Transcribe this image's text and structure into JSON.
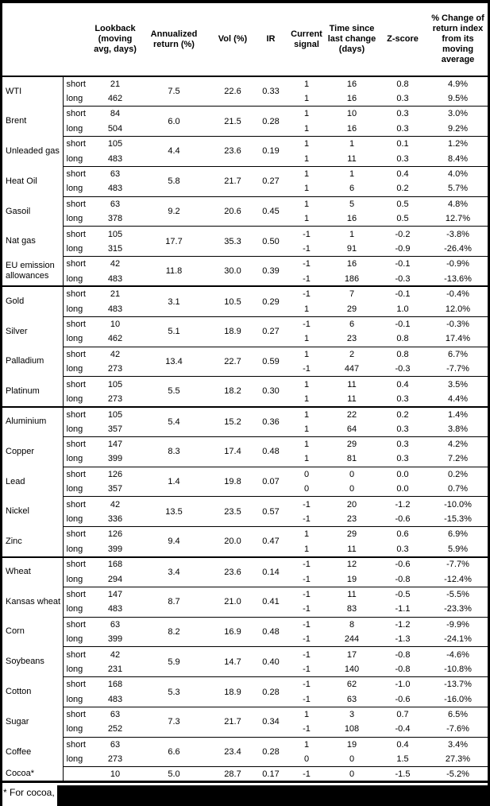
{
  "colors": {
    "text": "#000000",
    "background": "#ffffff",
    "rule": "#000000",
    "redaction": "#000000"
  },
  "header": {
    "columns": [
      "",
      "",
      "Lookback (moving avg, days)",
      "Annualized return (%)",
      "Vol (%)",
      "IR",
      "Current signal",
      "Time since last change (days)",
      "Z-score",
      "% Change of return index from its moving average"
    ]
  },
  "table": {
    "groups": [
      {
        "name": "WTI",
        "section_start": false,
        "ann_return": "7.5",
        "vol": "22.6",
        "ir": "0.33",
        "rows": [
          {
            "horizon": "short",
            "lookback": "21",
            "signal": "1",
            "time_since": "16",
            "zscore": "0.8",
            "pct_change": "4.9%"
          },
          {
            "horizon": "long",
            "lookback": "462",
            "signal": "1",
            "time_since": "16",
            "zscore": "0.3",
            "pct_change": "9.5%"
          }
        ]
      },
      {
        "name": "Brent",
        "section_start": false,
        "ann_return": "6.0",
        "vol": "21.5",
        "ir": "0.28",
        "rows": [
          {
            "horizon": "short",
            "lookback": "84",
            "signal": "1",
            "time_since": "10",
            "zscore": "0.3",
            "pct_change": "3.0%"
          },
          {
            "horizon": "long",
            "lookback": "504",
            "signal": "1",
            "time_since": "16",
            "zscore": "0.3",
            "pct_change": "9.2%"
          }
        ]
      },
      {
        "name": "Unleaded gas",
        "section_start": false,
        "ann_return": "4.4",
        "vol": "23.6",
        "ir": "0.19",
        "rows": [
          {
            "horizon": "short",
            "lookback": "105",
            "signal": "1",
            "time_since": "1",
            "zscore": "0.1",
            "pct_change": "1.2%"
          },
          {
            "horizon": "long",
            "lookback": "483",
            "signal": "1",
            "time_since": "11",
            "zscore": "0.3",
            "pct_change": "8.4%"
          }
        ]
      },
      {
        "name": "Heat Oil",
        "section_start": false,
        "ann_return": "5.8",
        "vol": "21.7",
        "ir": "0.27",
        "rows": [
          {
            "horizon": "short",
            "lookback": "63",
            "signal": "1",
            "time_since": "1",
            "zscore": "0.4",
            "pct_change": "4.0%"
          },
          {
            "horizon": "long",
            "lookback": "483",
            "signal": "1",
            "time_since": "6",
            "zscore": "0.2",
            "pct_change": "5.7%"
          }
        ]
      },
      {
        "name": "Gasoil",
        "section_start": false,
        "ann_return": "9.2",
        "vol": "20.6",
        "ir": "0.45",
        "rows": [
          {
            "horizon": "short",
            "lookback": "63",
            "signal": "1",
            "time_since": "5",
            "zscore": "0.5",
            "pct_change": "4.8%"
          },
          {
            "horizon": "long",
            "lookback": "378",
            "signal": "1",
            "time_since": "16",
            "zscore": "0.5",
            "pct_change": "12.7%"
          }
        ]
      },
      {
        "name": "Nat gas",
        "section_start": false,
        "ann_return": "17.7",
        "vol": "35.3",
        "ir": "0.50",
        "rows": [
          {
            "horizon": "short",
            "lookback": "105",
            "signal": "-1",
            "time_since": "1",
            "zscore": "-0.2",
            "pct_change": "-3.8%"
          },
          {
            "horizon": "long",
            "lookback": "315",
            "signal": "-1",
            "time_since": "91",
            "zscore": "-0.9",
            "pct_change": "-26.4%"
          }
        ]
      },
      {
        "name": "EU emission allowances",
        "section_start": false,
        "ann_return": "11.8",
        "vol": "30.0",
        "ir": "0.39",
        "rows": [
          {
            "horizon": "short",
            "lookback": "42",
            "signal": "-1",
            "time_since": "16",
            "zscore": "-0.1",
            "pct_change": "-0.9%"
          },
          {
            "horizon": "long",
            "lookback": "483",
            "signal": "-1",
            "time_since": "186",
            "zscore": "-0.3",
            "pct_change": "-13.6%"
          }
        ]
      },
      {
        "name": "Gold",
        "section_start": true,
        "ann_return": "3.1",
        "vol": "10.5",
        "ir": "0.29",
        "rows": [
          {
            "horizon": "short",
            "lookback": "21",
            "signal": "-1",
            "time_since": "7",
            "zscore": "-0.1",
            "pct_change": "-0.4%"
          },
          {
            "horizon": "long",
            "lookback": "483",
            "signal": "1",
            "time_since": "29",
            "zscore": "1.0",
            "pct_change": "12.0%"
          }
        ]
      },
      {
        "name": "Silver",
        "section_start": false,
        "ann_return": "5.1",
        "vol": "18.9",
        "ir": "0.27",
        "rows": [
          {
            "horizon": "short",
            "lookback": "10",
            "signal": "-1",
            "time_since": "6",
            "zscore": "-0.1",
            "pct_change": "-0.3%"
          },
          {
            "horizon": "long",
            "lookback": "462",
            "signal": "1",
            "time_since": "23",
            "zscore": "0.8",
            "pct_change": "17.4%"
          }
        ]
      },
      {
        "name": "Palladium",
        "section_start": false,
        "ann_return": "13.4",
        "vol": "22.7",
        "ir": "0.59",
        "rows": [
          {
            "horizon": "short",
            "lookback": "42",
            "signal": "1",
            "time_since": "2",
            "zscore": "0.8",
            "pct_change": "6.7%"
          },
          {
            "horizon": "long",
            "lookback": "273",
            "signal": "-1",
            "time_since": "447",
            "zscore": "-0.3",
            "pct_change": "-7.7%"
          }
        ]
      },
      {
        "name": "Platinum",
        "section_start": false,
        "ann_return": "5.5",
        "vol": "18.2",
        "ir": "0.30",
        "rows": [
          {
            "horizon": "short",
            "lookback": "105",
            "signal": "1",
            "time_since": "11",
            "zscore": "0.4",
            "pct_change": "3.5%"
          },
          {
            "horizon": "long",
            "lookback": "273",
            "signal": "1",
            "time_since": "11",
            "zscore": "0.3",
            "pct_change": "4.4%"
          }
        ]
      },
      {
        "name": "Aluminium",
        "section_start": true,
        "ann_return": "5.4",
        "vol": "15.2",
        "ir": "0.36",
        "rows": [
          {
            "horizon": "short",
            "lookback": "105",
            "signal": "1",
            "time_since": "22",
            "zscore": "0.2",
            "pct_change": "1.4%"
          },
          {
            "horizon": "long",
            "lookback": "357",
            "signal": "1",
            "time_since": "64",
            "zscore": "0.3",
            "pct_change": "3.8%"
          }
        ]
      },
      {
        "name": "Copper",
        "section_start": false,
        "ann_return": "8.3",
        "vol": "17.4",
        "ir": "0.48",
        "rows": [
          {
            "horizon": "short",
            "lookback": "147",
            "signal": "1",
            "time_since": "29",
            "zscore": "0.3",
            "pct_change": "4.2%"
          },
          {
            "horizon": "long",
            "lookback": "399",
            "signal": "1",
            "time_since": "81",
            "zscore": "0.3",
            "pct_change": "7.2%"
          }
        ]
      },
      {
        "name": "Lead",
        "section_start": false,
        "ann_return": "1.4",
        "vol": "19.8",
        "ir": "0.07",
        "rows": [
          {
            "horizon": "short",
            "lookback": "126",
            "signal": "0",
            "time_since": "0",
            "zscore": "0.0",
            "pct_change": "0.2%"
          },
          {
            "horizon": "long",
            "lookback": "357",
            "signal": "0",
            "time_since": "0",
            "zscore": "0.0",
            "pct_change": "0.7%"
          }
        ]
      },
      {
        "name": "Nickel",
        "section_start": false,
        "ann_return": "13.5",
        "vol": "23.5",
        "ir": "0.57",
        "rows": [
          {
            "horizon": "short",
            "lookback": "42",
            "signal": "-1",
            "time_since": "20",
            "zscore": "-1.2",
            "pct_change": "-10.0%"
          },
          {
            "horizon": "long",
            "lookback": "336",
            "signal": "-1",
            "time_since": "23",
            "zscore": "-0.6",
            "pct_change": "-15.3%"
          }
        ]
      },
      {
        "name": "Zinc",
        "section_start": false,
        "ann_return": "9.4",
        "vol": "20.0",
        "ir": "0.47",
        "rows": [
          {
            "horizon": "short",
            "lookback": "126",
            "signal": "1",
            "time_since": "29",
            "zscore": "0.6",
            "pct_change": "6.9%"
          },
          {
            "horizon": "long",
            "lookback": "399",
            "signal": "1",
            "time_since": "11",
            "zscore": "0.3",
            "pct_change": "5.9%"
          }
        ]
      },
      {
        "name": "Wheat",
        "section_start": true,
        "ann_return": "3.4",
        "vol": "23.6",
        "ir": "0.14",
        "rows": [
          {
            "horizon": "short",
            "lookback": "168",
            "signal": "-1",
            "time_since": "12",
            "zscore": "-0.6",
            "pct_change": "-7.7%"
          },
          {
            "horizon": "long",
            "lookback": "294",
            "signal": "-1",
            "time_since": "19",
            "zscore": "-0.8",
            "pct_change": "-12.4%"
          }
        ]
      },
      {
        "name": "Kansas wheat",
        "section_start": false,
        "ann_return": "8.7",
        "vol": "21.0",
        "ir": "0.41",
        "rows": [
          {
            "horizon": "short",
            "lookback": "147",
            "signal": "-1",
            "time_since": "11",
            "zscore": "-0.5",
            "pct_change": "-5.5%"
          },
          {
            "horizon": "long",
            "lookback": "483",
            "signal": "-1",
            "time_since": "83",
            "zscore": "-1.1",
            "pct_change": "-23.3%"
          }
        ]
      },
      {
        "name": "Corn",
        "section_start": false,
        "ann_return": "8.2",
        "vol": "16.9",
        "ir": "0.48",
        "rows": [
          {
            "horizon": "short",
            "lookback": "63",
            "signal": "-1",
            "time_since": "8",
            "zscore": "-1.2",
            "pct_change": "-9.9%"
          },
          {
            "horizon": "long",
            "lookback": "399",
            "signal": "-1",
            "time_since": "244",
            "zscore": "-1.3",
            "pct_change": "-24.1%"
          }
        ]
      },
      {
        "name": "Soybeans",
        "section_start": false,
        "ann_return": "5.9",
        "vol": "14.7",
        "ir": "0.40",
        "rows": [
          {
            "horizon": "short",
            "lookback": "42",
            "signal": "-1",
            "time_since": "17",
            "zscore": "-0.8",
            "pct_change": "-4.6%"
          },
          {
            "horizon": "long",
            "lookback": "231",
            "signal": "-1",
            "time_since": "140",
            "zscore": "-0.8",
            "pct_change": "-10.8%"
          }
        ]
      },
      {
        "name": "Cotton",
        "section_start": false,
        "ann_return": "5.3",
        "vol": "18.9",
        "ir": "0.28",
        "rows": [
          {
            "horizon": "short",
            "lookback": "168",
            "signal": "-1",
            "time_since": "62",
            "zscore": "-1.0",
            "pct_change": "-13.7%"
          },
          {
            "horizon": "long",
            "lookback": "483",
            "signal": "-1",
            "time_since": "63",
            "zscore": "-0.6",
            "pct_change": "-16.0%"
          }
        ]
      },
      {
        "name": "Sugar",
        "section_start": false,
        "ann_return": "7.3",
        "vol": "21.7",
        "ir": "0.34",
        "rows": [
          {
            "horizon": "short",
            "lookback": "63",
            "signal": "1",
            "time_since": "3",
            "zscore": "0.7",
            "pct_change": "6.5%"
          },
          {
            "horizon": "long",
            "lookback": "252",
            "signal": "-1",
            "time_since": "108",
            "zscore": "-0.4",
            "pct_change": "-7.6%"
          }
        ]
      },
      {
        "name": "Coffee",
        "section_start": false,
        "ann_return": "6.6",
        "vol": "23.4",
        "ir": "0.28",
        "rows": [
          {
            "horizon": "short",
            "lookback": "63",
            "signal": "1",
            "time_since": "19",
            "zscore": "0.4",
            "pct_change": "3.4%"
          },
          {
            "horizon": "long",
            "lookback": "273",
            "signal": "0",
            "time_since": "0",
            "zscore": "1.5",
            "pct_change": "27.3%"
          }
        ]
      },
      {
        "name": "Cocoa*",
        "section_start": false,
        "ann_return": "5.0",
        "vol": "28.7",
        "ir": "0.17",
        "rows": [
          {
            "horizon": "",
            "lookback": "10",
            "signal": "-1",
            "time_since": "0",
            "zscore": "-1.5",
            "pct_change": "-5.2%"
          }
        ]
      }
    ]
  },
  "footnote": {
    "visible_text": "* For cocoa, uses o"
  }
}
